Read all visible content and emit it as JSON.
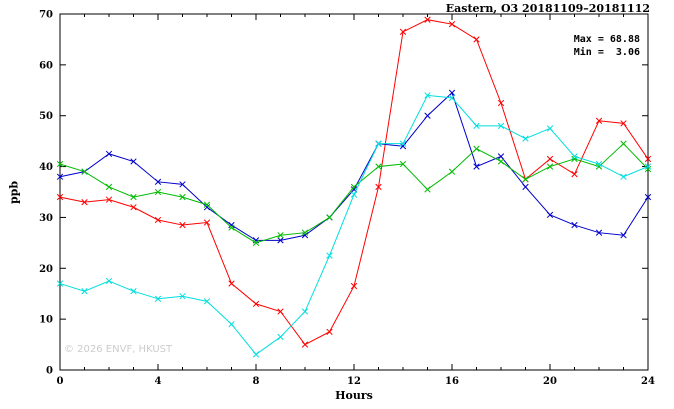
{
  "header": {
    "title": "Eastern, O3 20181109–20181112"
  },
  "annotations": {
    "max_label": "Max = 68.88",
    "min_label": "Min =  3.06"
  },
  "watermark": "© 2026 ENVF, HKUST",
  "axes": {
    "ylabel": "ppb",
    "xlabel": "Hours"
  },
  "chart_data": {
    "type": "line",
    "title": "Eastern, O3 20181109–20181112",
    "xlabel": "Hours",
    "ylabel": "ppb",
    "xlim": [
      0,
      24
    ],
    "ylim": [
      0,
      70
    ],
    "x_ticks": [
      0,
      4,
      8,
      12,
      16,
      20,
      24
    ],
    "y_ticks": [
      0,
      10,
      20,
      30,
      40,
      50,
      60,
      70
    ],
    "grid": false,
    "legend_position": "none",
    "marker": "x",
    "x": [
      0,
      1,
      2,
      3,
      4,
      5,
      6,
      7,
      8,
      9,
      10,
      11,
      12,
      13,
      14,
      15,
      16,
      17,
      18,
      19,
      20,
      21,
      22,
      23,
      24
    ],
    "series": [
      {
        "name": "red",
        "color": "#ff0000",
        "values": [
          34,
          33,
          33.5,
          32,
          29.5,
          28.5,
          29,
          17,
          13,
          11.5,
          5,
          7.5,
          16.5,
          36,
          66.5,
          68.88,
          68,
          65,
          52.5,
          37.5,
          41.5,
          38.5,
          49,
          48.5,
          41.5
        ]
      },
      {
        "name": "blue",
        "color": "#0000cc",
        "values": [
          38,
          39,
          42.5,
          41,
          37,
          36.5,
          32,
          28.5,
          25.5,
          25.5,
          26.5,
          30,
          35.5,
          44.5,
          44,
          50,
          54.5,
          40,
          42,
          36,
          30.5,
          28.5,
          27,
          26.5,
          34
        ]
      },
      {
        "name": "green",
        "color": "#00bb00",
        "values": [
          40.5,
          39,
          36,
          34,
          35,
          34,
          32.5,
          28,
          25,
          26.5,
          27,
          30,
          36,
          40,
          40.5,
          35.5,
          39,
          43.5,
          41,
          37.5,
          40,
          41.5,
          40,
          44.5,
          39.5
        ]
      },
      {
        "name": "cyan",
        "color": "#00dede",
        "values": [
          17,
          15.5,
          17.5,
          15.5,
          14,
          14.5,
          13.5,
          9,
          3.06,
          6.5,
          11.5,
          22.5,
          34.5,
          44.5,
          44.5,
          54,
          53.5,
          48,
          48,
          45.5,
          47.5,
          42,
          40.5,
          38,
          40
        ]
      }
    ],
    "stats": {
      "max": 68.88,
      "min": 3.06
    }
  }
}
